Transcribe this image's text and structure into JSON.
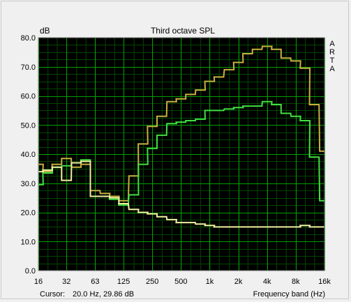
{
  "chart_data": {
    "type": "line",
    "step": true,
    "title": "Third octave SPL",
    "ylabel": "dB",
    "xlabel": "Frequency band (Hz)",
    "side_label": [
      "A",
      "R",
      "T",
      "A"
    ],
    "ylim": [
      0,
      80
    ],
    "y_ticks": [
      "0.0",
      "10.0",
      "20.0",
      "30.0",
      "40.0",
      "50.0",
      "60.0",
      "70.0",
      "80.0"
    ],
    "x_scale": "log",
    "x_ticks": [
      {
        "value": 16,
        "label": "16"
      },
      {
        "value": 31.5,
        "label": "32"
      },
      {
        "value": 63,
        "label": "63"
      },
      {
        "value": 125,
        "label": "125"
      },
      {
        "value": 250,
        "label": "250"
      },
      {
        "value": 500,
        "label": "500"
      },
      {
        "value": 1000,
        "label": "1k"
      },
      {
        "value": 2000,
        "label": "2k"
      },
      {
        "value": 4000,
        "label": "4k"
      },
      {
        "value": 8000,
        "label": "8k"
      },
      {
        "value": 16000,
        "label": "16k"
      }
    ],
    "grid": true,
    "x": [
      16,
      20,
      25,
      31.5,
      40,
      50,
      63,
      80,
      100,
      125,
      160,
      200,
      250,
      315,
      400,
      500,
      630,
      800,
      1000,
      1250,
      1600,
      2000,
      2500,
      3150,
      4000,
      5000,
      6300,
      8000,
      10000,
      12500,
      16000
    ],
    "series": [
      {
        "color": "#c8b040",
        "values": [
          36.5,
          34,
          36.5,
          38.5,
          35.5,
          36.5,
          27.5,
          26.5,
          25.5,
          24.0,
          32.5,
          43.5,
          49.5,
          53.0,
          58.0,
          59.0,
          60.5,
          62.0,
          65.0,
          66.5,
          69.0,
          71.5,
          74.5,
          76.0,
          77.0,
          76.0,
          73.0,
          72.0,
          69.5,
          57.0,
          41.0
        ]
      },
      {
        "color": "#40e040",
        "values": [
          29.5,
          33.5,
          35.5,
          36.0,
          37.0,
          38.0,
          25.5,
          25.5,
          24.5,
          22.5,
          26.0,
          36.5,
          42.0,
          46.5,
          50.5,
          51.0,
          51.5,
          52.0,
          55.0,
          55.0,
          55.5,
          56.0,
          56.5,
          56.5,
          58.0,
          57.0,
          54.0,
          53.0,
          51.5,
          39.0,
          24.0
        ]
      },
      {
        "color": "#f0f0a0",
        "values": [
          34.0,
          34.5,
          35.5,
          31.0,
          37.0,
          37.5,
          25.5,
          25.5,
          25.0,
          23.0,
          21.0,
          20.0,
          19.5,
          18.5,
          17.5,
          16.5,
          16.5,
          16.0,
          15.5,
          15.0,
          15.0,
          15.0,
          15.0,
          15.0,
          15.0,
          15.0,
          15.0,
          15.0,
          15.5,
          15.0,
          15.0
        ]
      }
    ]
  },
  "status": {
    "cursor_label": "Cursor:",
    "cursor_value": "20.0 Hz, 29.86 dB"
  },
  "colors": {
    "plot_bg": "#000000",
    "grid_major": "#00a000",
    "grid_minor": "#004800",
    "window_bg": "#f0f0f0"
  }
}
